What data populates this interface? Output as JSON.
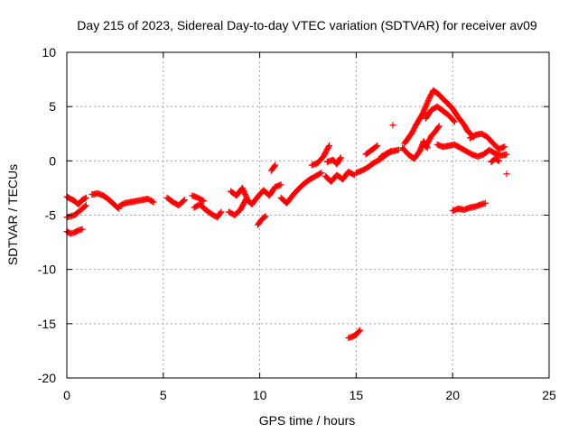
{
  "chart_data": {
    "type": "scatter",
    "title": "Day 215 of 2023, Sidereal Day-to-day VTEC variation (SDTVAR) for receiver av09",
    "xlabel": "GPS time / hours",
    "ylabel": "SDTVAR / TECUs",
    "xlim": [
      0,
      25
    ],
    "ylim": [
      -20,
      10
    ],
    "xticks": [
      0,
      5,
      10,
      15,
      20,
      25
    ],
    "yticks": [
      -20,
      -15,
      -10,
      -5,
      0,
      5,
      10
    ],
    "grid": true,
    "marker": "+",
    "series": [
      {
        "name": "SDTVAR",
        "color": "#ff0000",
        "segments": [
          [
            [
              0.0,
              -3.3
            ],
            [
              0.2,
              -3.5
            ],
            [
              0.4,
              -3.7
            ],
            [
              0.6,
              -4.0
            ],
            [
              0.8,
              -3.6
            ],
            [
              1.0,
              -3.4
            ]
          ],
          [
            [
              0.0,
              -5.2
            ],
            [
              0.2,
              -5.1
            ],
            [
              0.4,
              -5.0
            ],
            [
              0.6,
              -4.7
            ],
            [
              0.8,
              -4.4
            ],
            [
              1.0,
              -4.1
            ]
          ],
          [
            [
              0.0,
              -6.5
            ],
            [
              0.2,
              -6.7
            ],
            [
              0.4,
              -6.6
            ],
            [
              0.6,
              -6.4
            ],
            [
              0.8,
              -6.3
            ]
          ],
          [
            [
              1.3,
              -3.1
            ],
            [
              1.6,
              -3.0
            ],
            [
              1.9,
              -3.2
            ],
            [
              2.2,
              -3.6
            ],
            [
              2.5,
              -4.1
            ],
            [
              2.7,
              -4.4
            ]
          ],
          [
            [
              2.7,
              -4.2
            ],
            [
              3.0,
              -3.9
            ],
            [
              3.3,
              -3.8
            ],
            [
              3.6,
              -3.7
            ],
            [
              3.9,
              -3.6
            ],
            [
              4.2,
              -3.5
            ],
            [
              4.5,
              -3.8
            ]
          ],
          [
            [
              5.2,
              -3.4
            ],
            [
              5.5,
              -3.8
            ],
            [
              5.8,
              -4.1
            ],
            [
              6.1,
              -3.6
            ]
          ],
          [
            [
              6.6,
              -4.3
            ],
            [
              6.9,
              -4.0
            ],
            [
              7.2,
              -4.5
            ],
            [
              7.5,
              -4.9
            ],
            [
              7.8,
              -5.2
            ],
            [
              8.0,
              -4.7
            ]
          ],
          [
            [
              6.5,
              -3.2
            ],
            [
              6.8,
              -3.4
            ],
            [
              7.1,
              -3.7
            ]
          ],
          [
            [
              8.4,
              -4.7
            ],
            [
              8.7,
              -5.0
            ],
            [
              9.0,
              -4.5
            ],
            [
              9.3,
              -3.5
            ],
            [
              9.6,
              -4.0
            ],
            [
              9.9,
              -3.3
            ],
            [
              10.2,
              -2.7
            ],
            [
              10.5,
              -3.2
            ],
            [
              10.8,
              -2.4
            ],
            [
              11.1,
              -2.2
            ]
          ],
          [
            [
              8.5,
              -2.8
            ],
            [
              8.8,
              -3.2
            ],
            [
              9.1,
              -2.5
            ],
            [
              9.4,
              -3.7
            ]
          ],
          [
            [
              9.9,
              -5.9
            ],
            [
              10.1,
              -5.4
            ],
            [
              10.3,
              -5.1
            ]
          ],
          [
            [
              10.6,
              -0.9
            ],
            [
              10.8,
              -0.4
            ]
          ],
          [
            [
              11.1,
              -3.4
            ],
            [
              11.4,
              -3.9
            ],
            [
              11.7,
              -3.2
            ],
            [
              12.0,
              -2.6
            ],
            [
              12.3,
              -2.1
            ],
            [
              12.6,
              -1.7
            ],
            [
              12.9,
              -1.4
            ],
            [
              13.2,
              -1.1
            ]
          ],
          [
            [
              12.7,
              -0.4
            ],
            [
              13.0,
              -0.2
            ],
            [
              13.3,
              0.4
            ],
            [
              13.6,
              1.4
            ]
          ],
          [
            [
              13.4,
              -1.4
            ],
            [
              13.7,
              -1.9
            ],
            [
              14.0,
              -1.3
            ],
            [
              14.3,
              -1.7
            ],
            [
              14.6,
              -1.0
            ],
            [
              14.9,
              -1.3
            ]
          ],
          [
            [
              13.5,
              -0.1
            ],
            [
              13.8,
              0.1
            ],
            [
              14.0,
              -0.3
            ],
            [
              14.2,
              0.3
            ]
          ],
          [
            [
              15.0,
              -1.1
            ],
            [
              15.3,
              -0.9
            ],
            [
              15.6,
              -0.6
            ],
            [
              15.9,
              -0.2
            ],
            [
              16.2,
              0.1
            ],
            [
              16.5,
              0.5
            ],
            [
              16.8,
              0.9
            ]
          ],
          [
            [
              15.5,
              0.6
            ],
            [
              15.8,
              1.0
            ],
            [
              16.1,
              1.4
            ]
          ],
          [
            [
              16.3,
              0.4
            ],
            [
              16.6,
              0.7
            ],
            [
              16.9,
              0.9
            ],
            [
              17.2,
              1.0
            ]
          ],
          [
            [
              16.9,
              3.3
            ]
          ],
          [
            [
              17.4,
              1.2
            ],
            [
              17.7,
              0.6
            ],
            [
              18.0,
              0.2
            ],
            [
              18.3,
              0.9
            ],
            [
              18.5,
              1.8
            ],
            [
              18.7,
              1.2
            ]
          ],
          [
            [
              17.5,
              1.6
            ],
            [
              17.7,
              2.1
            ],
            [
              17.9,
              2.6
            ],
            [
              18.1,
              3.3
            ],
            [
              18.3,
              3.9
            ],
            [
              18.5,
              4.5
            ]
          ],
          [
            [
              18.5,
              4.6
            ],
            [
              18.8,
              5.8
            ],
            [
              19.0,
              6.5
            ],
            [
              19.3,
              6.1
            ],
            [
              19.5,
              5.7
            ],
            [
              19.8,
              5.2
            ],
            [
              20.0,
              4.8
            ],
            [
              20.3,
              4.0
            ],
            [
              20.6,
              3.3
            ],
            [
              20.8,
              2.7
            ],
            [
              21.1,
              2.2
            ]
          ],
          [
            [
              18.6,
              3.9
            ],
            [
              18.9,
              4.7
            ],
            [
              19.2,
              5.0
            ],
            [
              19.5,
              4.6
            ],
            [
              19.8,
              4.2
            ],
            [
              20.1,
              3.6
            ]
          ],
          [
            [
              18.6,
              1.3
            ],
            [
              18.9,
              2.3
            ],
            [
              19.1,
              2.7
            ],
            [
              19.3,
              3.2
            ]
          ],
          [
            [
              19.2,
              1.5
            ],
            [
              19.5,
              1.3
            ],
            [
              19.8,
              1.4
            ],
            [
              20.1,
              1.5
            ],
            [
              20.4,
              1.2
            ],
            [
              20.7,
              0.9
            ],
            [
              21.0,
              0.6
            ],
            [
              21.3,
              0.4
            ],
            [
              21.6,
              0.6
            ],
            [
              21.9,
              1.0
            ],
            [
              22.2,
              0.7
            ],
            [
              22.5,
              0.5
            ],
            [
              22.8,
              0.6
            ]
          ],
          [
            [
              20.9,
              2.1
            ],
            [
              21.2,
              2.4
            ],
            [
              21.5,
              2.5
            ],
            [
              21.8,
              2.2
            ],
            [
              22.1,
              1.6
            ],
            [
              22.4,
              1.1
            ],
            [
              22.7,
              1.3
            ]
          ],
          [
            [
              22.0,
              -0.1
            ],
            [
              22.2,
              0.2
            ],
            [
              22.4,
              0.0
            ]
          ],
          [
            [
              20.0,
              -4.6
            ],
            [
              20.3,
              -4.4
            ],
            [
              20.6,
              -4.5
            ],
            [
              20.9,
              -4.3
            ],
            [
              21.2,
              -4.2
            ],
            [
              21.5,
              -4.0
            ],
            [
              21.7,
              -3.9
            ]
          ],
          [
            [
              22.8,
              -1.2
            ]
          ],
          [
            [
              14.6,
              -16.3
            ],
            [
              14.8,
              -16.2
            ],
            [
              15.0,
              -16.0
            ],
            [
              15.2,
              -15.6
            ]
          ]
        ]
      }
    ]
  }
}
